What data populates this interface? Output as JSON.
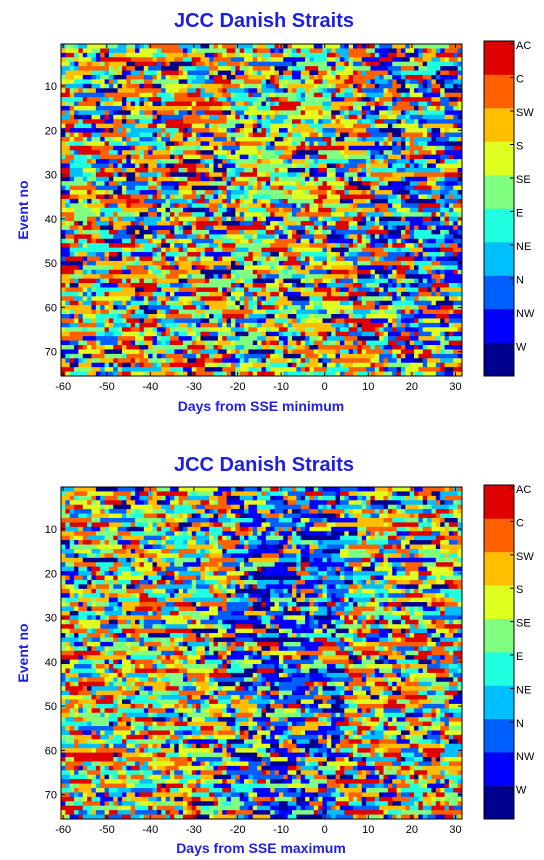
{
  "chart_data": [
    {
      "type": "heatmap",
      "title": "JCC Danish Straits",
      "xlabel": "Days from SSE minimum",
      "ylabel": "Event no",
      "xlim": [
        -60,
        31
      ],
      "ylim": [
        1,
        75
      ],
      "x_reversed": false,
      "y_reversed": true,
      "xticks": [
        -60,
        -50,
        -40,
        -30,
        -20,
        -10,
        0,
        10,
        20,
        30
      ],
      "yticks": [
        10,
        20,
        30,
        40,
        50,
        60,
        70
      ],
      "pattern_seed": 17,
      "pattern": "greens/yellows concentrated in central band around -20..0 days, blues toward right edge, orange/red elsewhere"
    },
    {
      "type": "heatmap",
      "title": "JCC Danish Straits",
      "xlabel": "Days from SSE maximum",
      "ylabel": "Event no",
      "xlim": [
        -60,
        31
      ],
      "ylim": [
        1,
        75
      ],
      "x_reversed": false,
      "y_reversed": true,
      "xticks": [
        -60,
        -50,
        -40,
        -30,
        -20,
        -10,
        0,
        10,
        20,
        30
      ],
      "yticks": [
        10,
        20,
        30,
        40,
        50,
        60,
        70
      ],
      "pattern_seed": 53,
      "pattern": "blues (W/NW/N) concentrated in central band around -20..0 days, orange/red and greens elsewhere"
    }
  ],
  "colorbar": {
    "categories": [
      "W",
      "NW",
      "N",
      "NE",
      "E",
      "SE",
      "S",
      "SW",
      "C",
      "AC"
    ],
    "colors": [
      "#00008f",
      "#0000ff",
      "#0060ff",
      "#00bfff",
      "#20ffdf",
      "#80ff80",
      "#dfff20",
      "#ffbf00",
      "#ff6000",
      "#df0000"
    ]
  },
  "heatmap_colors": [
    "#00008f",
    "#0000ff",
    "#0060ff",
    "#00bfff",
    "#20ffdf",
    "#80ff80",
    "#dfff20",
    "#ffbf00",
    "#ff6000",
    "#df0000"
  ]
}
